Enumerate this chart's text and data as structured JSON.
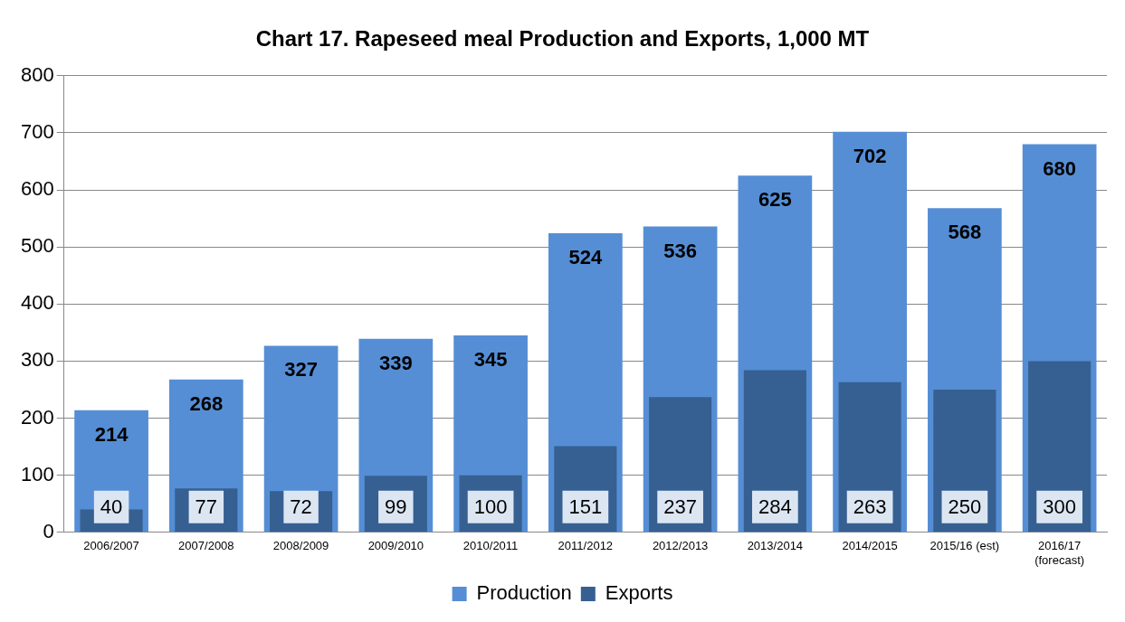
{
  "chart_data": {
    "type": "bar",
    "title": "Chart 17. Rapeseed meal Production and Exports, 1,000 MT",
    "categories": [
      "2006/2007",
      "2007/2008",
      "2008/2009",
      "2009/2010",
      "2010/2011",
      "2011/2012",
      "2012/2013",
      "2013/2014",
      "2014/2015",
      "2015/16 (est)",
      "2016/17\n(forecast)"
    ],
    "series": [
      {
        "name": "Production",
        "color": "#558ed5",
        "values": [
          214,
          268,
          327,
          339,
          345,
          524,
          536,
          625,
          702,
          568,
          680
        ]
      },
      {
        "name": "Exports",
        "color": "#366092",
        "values": [
          40,
          77,
          72,
          99,
          100,
          151,
          237,
          284,
          263,
          250,
          300
        ]
      }
    ],
    "ylim": [
      0,
      800
    ],
    "yticks": [
      0,
      100,
      200,
      300,
      400,
      500,
      600,
      700,
      800
    ],
    "grid": "y",
    "legend": "bottom",
    "data_labels": true
  }
}
